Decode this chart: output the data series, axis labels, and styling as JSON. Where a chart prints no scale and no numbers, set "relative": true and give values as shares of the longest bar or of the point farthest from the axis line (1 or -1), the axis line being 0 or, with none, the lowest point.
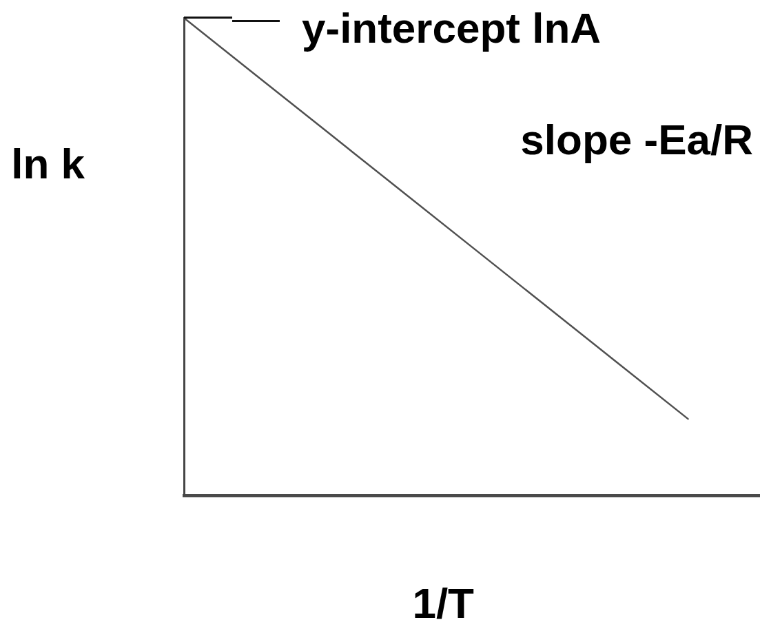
{
  "chart_data": {
    "type": "line",
    "relative": true,
    "marker": "none",
    "xlabel": "1/T",
    "ylabel": "ln k",
    "categories": [
      null,
      null,
      null,
      null,
      null,
      null,
      null,
      null,
      null
    ],
    "series": [
      {
        "color": "#505050",
        "values": [
          1,
          0.88,
          0.76,
          0.64,
          0.52,
          0.4,
          0.28,
          0.16,
          null
        ]
      }
    ],
    "annotations": [
      "y-intercept lnA",
      "slope -Ea/R"
    ]
  }
}
